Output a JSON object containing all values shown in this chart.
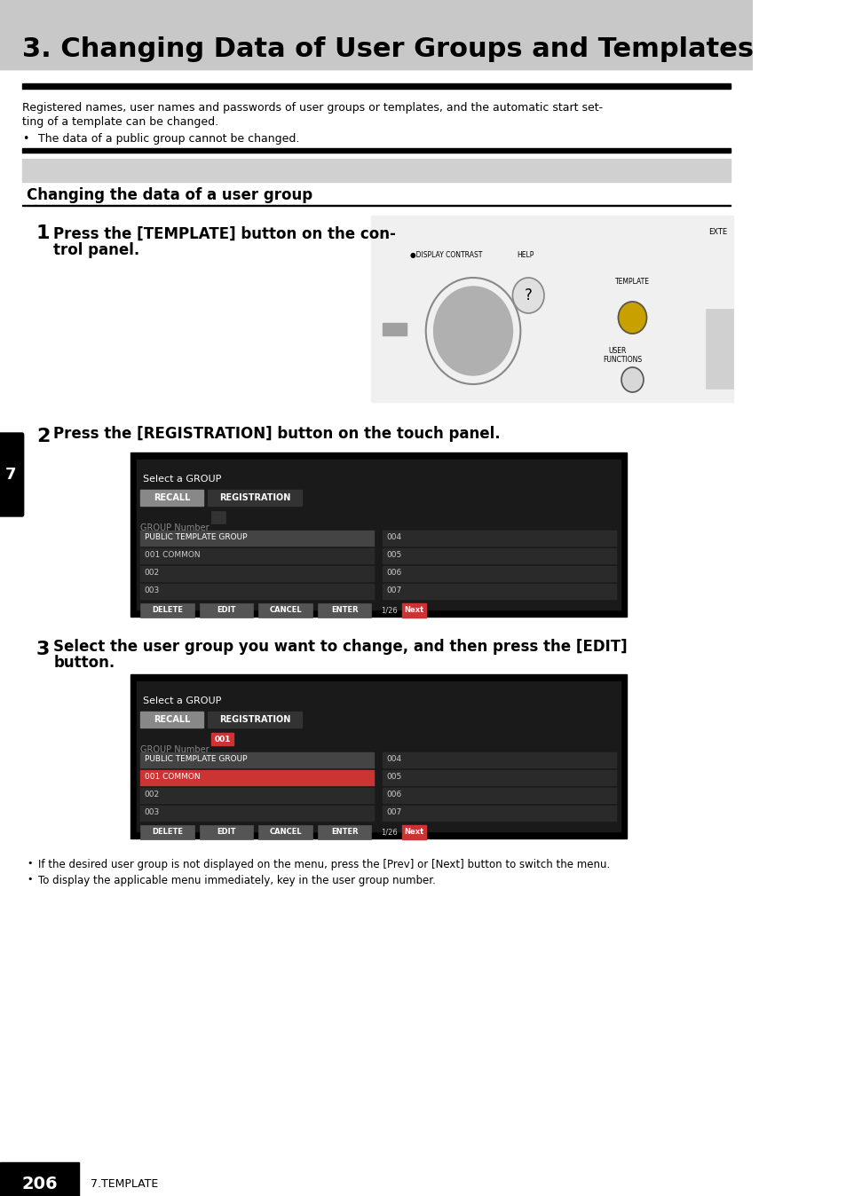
{
  "title": "3. Changing Data of User Groups and Templates",
  "title_bg": "#c8c8c8",
  "title_color": "#000000",
  "title_fontsize": 22,
  "body_bg": "#ffffff",
  "section_header": "Changing the data of a user group",
  "intro_text": "Registered names, user names and passwords of user groups or templates, and the automatic start setting of a template can be changed.",
  "bullet_text": "The data of a public group cannot be changed.",
  "step1_num": "1",
  "step1_text": "Press the [TEMPLATE] button on the control panel.",
  "step2_num": "2",
  "step2_text": "Press the [REGISTRATION] button on the touch panel.",
  "step3_num": "3",
  "step3_text": "Select the user group you want to change, and then press the [EDIT] button.",
  "note1": "If the desired user group is not displayed on the menu, press the [Prev] or [Next] button to switch the menu.",
  "note2": "To display the applicable menu immediately, key in the user group number.",
  "page_num": "206",
  "page_section": "7.TEMPLATE",
  "left_tab_color": "#000000",
  "left_tab_text": "7",
  "left_tab_text_color": "#ffffff"
}
